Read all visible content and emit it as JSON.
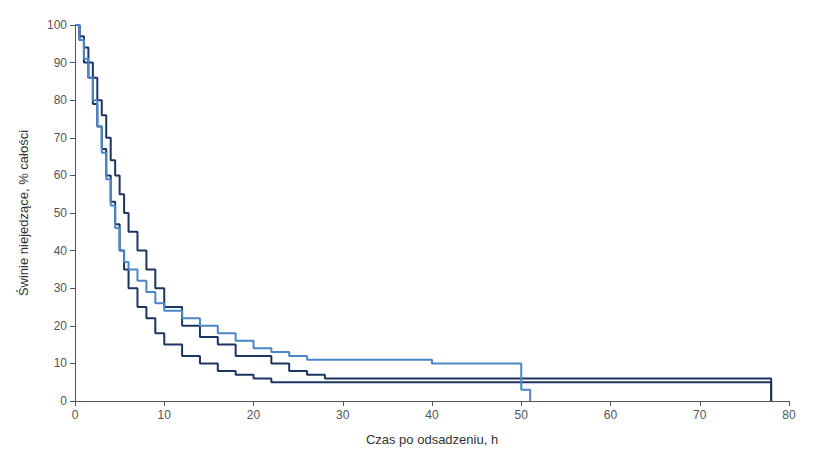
{
  "chart_data": {
    "type": "step",
    "xlabel": "Czas po odsadzeniu, h",
    "ylabel": "Świnie niejedzące, % całości",
    "xlim": [
      0,
      80
    ],
    "ylim": [
      0,
      100
    ],
    "xticks": [
      0,
      10,
      20,
      30,
      40,
      50,
      60,
      70,
      80
    ],
    "yticks": [
      0,
      10,
      20,
      30,
      40,
      50,
      60,
      70,
      80,
      90,
      100
    ],
    "grid": false,
    "series": [
      {
        "color": "#1e3461",
        "x": [
          0,
          0.5,
          1,
          1.5,
          2,
          2.5,
          3,
          3.5,
          4,
          4.5,
          5,
          5.5,
          6,
          7,
          8,
          9,
          10,
          12,
          14,
          16,
          18,
          22,
          24,
          26,
          28,
          30,
          35,
          40,
          77,
          78
        ],
        "values": [
          100,
          97,
          94,
          90,
          86,
          80,
          76,
          70,
          64,
          60,
          55,
          50,
          45,
          40,
          35,
          30,
          25,
          20,
          17,
          15,
          12,
          10,
          8,
          7,
          6,
          6,
          6,
          6,
          6,
          0
        ]
      },
      {
        "color": "#1e3461",
        "x": [
          0,
          0.5,
          1,
          1.5,
          2,
          2.5,
          3,
          3.5,
          4,
          4.5,
          5,
          5.5,
          6,
          7,
          8,
          9,
          10,
          12,
          14,
          16,
          18,
          20,
          22,
          24,
          26,
          28,
          77,
          78
        ],
        "values": [
          100,
          96,
          90,
          86,
          79,
          73,
          67,
          60,
          53,
          47,
          40,
          35,
          30,
          25,
          22,
          18,
          15,
          12,
          10,
          8,
          7,
          6,
          5,
          5,
          5,
          5,
          5,
          0
        ]
      },
      {
        "color": "#4a86c8",
        "x": [
          0,
          0.5,
          1,
          1.5,
          2,
          2.5,
          3,
          3.5,
          4,
          4.5,
          5,
          5.5,
          6,
          7,
          8,
          9,
          10,
          12,
          14,
          16,
          18,
          20,
          22,
          24,
          26,
          28,
          30,
          32,
          36,
          40,
          45,
          50,
          51
        ],
        "values": [
          100,
          96,
          91,
          86,
          80,
          73,
          66,
          59,
          52,
          46,
          40,
          37,
          35,
          32,
          29,
          26,
          24,
          22,
          20,
          18,
          16,
          14,
          13,
          12,
          11,
          11,
          11,
          11,
          11,
          10,
          10,
          3,
          0
        ]
      }
    ]
  }
}
